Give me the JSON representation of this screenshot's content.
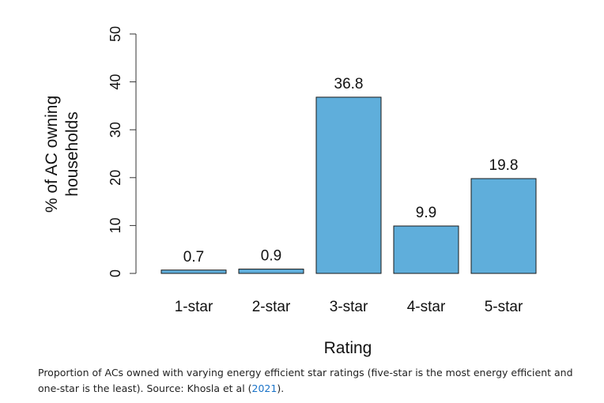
{
  "chart_data": {
    "type": "bar",
    "categories": [
      "1-star",
      "2-star",
      "3-star",
      "4-star",
      "5-star"
    ],
    "values": [
      0.7,
      0.9,
      36.8,
      9.9,
      19.8
    ],
    "data_labels": [
      "0.7",
      "0.9",
      "36.8",
      "9.9",
      "19.8"
    ],
    "title": "",
    "xlabel": "Rating",
    "ylabel_line1": "% of AC owning",
    "ylabel_line2": "households",
    "ylim": [
      0,
      50
    ],
    "yticks": [
      "0",
      "10",
      "20",
      "30",
      "40",
      "50"
    ],
    "grid": false,
    "bar_color": "#5faedb",
    "bar_edge_color": "#1a1a1a"
  },
  "caption": {
    "text": "Proportion of ACs owned with varying energy efficient star ratings (five-star is the most energy efficient and one-star is the least). Source: Khosla et al (",
    "link": "2021",
    "suffix": ")."
  }
}
